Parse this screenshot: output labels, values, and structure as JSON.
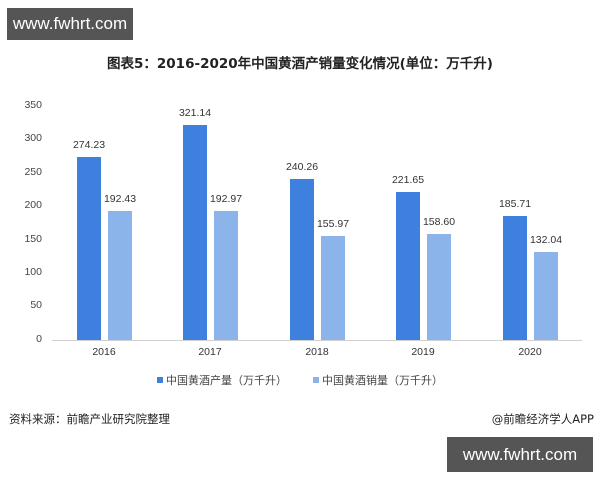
{
  "watermarks": {
    "top": "www.fwhrt.com",
    "bottom": "www.fwhrt.com"
  },
  "title": "图表5：2016-2020年中国黄酒产销量变化情况(单位：万千升)",
  "legend": [
    {
      "label": "中国黄酒产量（万千升）",
      "color": "#3d80dd"
    },
    {
      "label": "中国黄酒销量（万千升）",
      "color": "#8ab4ea"
    }
  ],
  "footer": {
    "source": "资料来源：前瞻产业研究院整理",
    "credit": "@前瞻经济学人APP"
  },
  "chart_data": {
    "type": "bar",
    "title": "图表5：2016-2020年中国黄酒产销量变化情况(单位：万千升)",
    "xlabel": "",
    "ylabel": "",
    "categories": [
      "2016",
      "2017",
      "2018",
      "2019",
      "2020"
    ],
    "series": [
      {
        "name": "中国黄酒产量（万千升）",
        "values": [
          274.23,
          321.14,
          240.26,
          221.65,
          185.71
        ],
        "labels": [
          "274.23",
          "321.14",
          "240.26",
          "221.65",
          "185.71"
        ]
      },
      {
        "name": "中国黄酒销量（万千升）",
        "values": [
          192.43,
          192.97,
          155.97,
          158.6,
          132.04
        ],
        "labels": [
          "192.43",
          "192.97",
          "155.97",
          "158.60",
          "132.04"
        ]
      }
    ],
    "ylim": [
      0,
      350
    ],
    "yticks": [
      "0",
      "50",
      "100",
      "150",
      "200",
      "250",
      "300",
      "350"
    ],
    "grid": false,
    "legend_position": "bottom"
  }
}
